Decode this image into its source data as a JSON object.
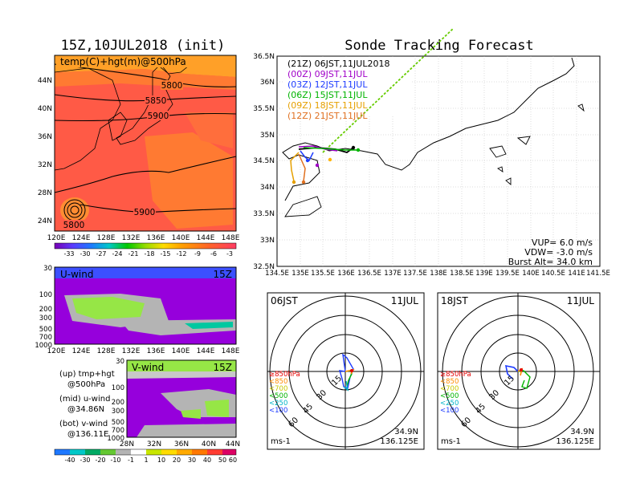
{
  "left": {
    "title": "15Z,10JUL2018 (init)",
    "map_label": "temp(C)+hgt(m)@500hPa",
    "lat_ticks": [
      "44N",
      "40N",
      "36N",
      "32N",
      "28N",
      "24N"
    ],
    "lon_ticks": [
      "120E",
      "124E",
      "128E",
      "132E",
      "136E",
      "140E",
      "144E",
      "148E"
    ],
    "contours": [
      "5800",
      "5850",
      "5900",
      "5900",
      "5800"
    ],
    "temp_colorbar": [
      "-33",
      "-30",
      "-27",
      "-24",
      "-21",
      "-18",
      "-15",
      "-12",
      "-9",
      "-6",
      "-3"
    ],
    "uwind_label": "U-wind",
    "uwind_time": "15Z",
    "uwind_pressure": [
      "30",
      "100",
      "200",
      "300",
      "500",
      "700",
      "1000"
    ],
    "uwind_lon_ticks": [
      "120E",
      "124E",
      "128E",
      "132E",
      "136E",
      "140E",
      "144E",
      "148E"
    ],
    "vwind_label": "V-wind",
    "vwind_time": "15Z",
    "vwind_pressure": [
      "30",
      "100",
      "200",
      "300",
      "500",
      "700",
      "1000"
    ],
    "vwind_lat_ticks": [
      "28N",
      "32N",
      "36N",
      "40N",
      "44N"
    ],
    "wind_colorbar": [
      "-40",
      "-30",
      "-20",
      "-10",
      "-1",
      "1",
      "10",
      "20",
      "30",
      "40",
      "50",
      "60"
    ],
    "notes": [
      {
        "a": "(up) tmp+hgt",
        "b": "@500hPa"
      },
      {
        "a": "(mid) u-wind",
        "b": "@34.86N"
      },
      {
        "a": "(bot) v-wind",
        "b": "@136.11E"
      }
    ]
  },
  "right": {
    "title": "Sonde Tracking Forecast",
    "lat_ticks": [
      "36.5N",
      "36N",
      "35.5N",
      "35N",
      "34.5N",
      "34N",
      "33.5N",
      "33N",
      "32.5N"
    ],
    "lon_ticks": [
      "134.5E",
      "135E",
      "135.5E",
      "136E",
      "136.5E",
      "137E",
      "137.5E",
      "138E",
      "138.5E",
      "139E",
      "139.5E",
      "140E",
      "140.5E",
      "141E",
      "141.5E"
    ],
    "legend": [
      {
        "text": "(21Z)  06JST,11JUL2018",
        "color": "#000000"
      },
      {
        "text": "(00Z)  09JST,11JUL",
        "color": "#a000c8"
      },
      {
        "text": "(03Z)  12JST,11JUL",
        "color": "#1e3cff"
      },
      {
        "text": "(06Z)  15JST,11JUL",
        "color": "#00b400"
      },
      {
        "text": "(09Z)  18JST,11JUL",
        "color": "#e6a000"
      },
      {
        "text": "(12Z)  21JST,11JUL",
        "color": "#e07020"
      }
    ],
    "params": [
      "VUP=  6.0 m/s",
      "VDW= -3.0 m/s",
      "Burst Alt= 34.0 km"
    ],
    "colors": {
      "track": "#66cc00"
    }
  },
  "polars": [
    {
      "time": "06JST",
      "date": "11JUL",
      "lat": "34.9N",
      "lon": "136.125E",
      "unit": "ms-1",
      "rings": [
        "15",
        "30",
        "45",
        "60"
      ]
    },
    {
      "time": "18JST",
      "date": "11JUL",
      "lat": "34.9N",
      "lon": "136.125E",
      "unit": "ms-1",
      "rings": [
        "15",
        "30",
        "45",
        "60"
      ]
    }
  ],
  "polar_legend": [
    {
      "text": "≥850hPa",
      "color": "#e60000"
    },
    {
      "text": "<850",
      "color": "#ff8c00"
    },
    {
      "text": "<700",
      "color": "#c8c800"
    },
    {
      "text": "<500",
      "color": "#00b400"
    },
    {
      "text": "<250",
      "color": "#00b4c8"
    },
    {
      "text": "<100",
      "color": "#1e3cff"
    }
  ]
}
